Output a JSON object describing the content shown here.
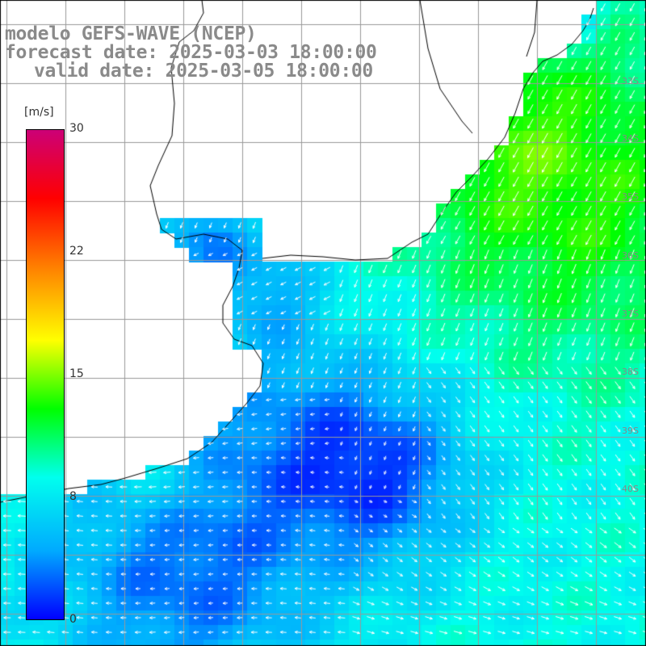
{
  "header": {
    "model": "modelo GEFS-WAVE (NCEP)",
    "forecast": "forecast date: 2025-03-03 18:00:00",
    "valid": "valid date: 2025-03-05 18:00:00"
  },
  "colorbar": {
    "unit": "[m/s]",
    "ticks": [
      "30",
      "22",
      "15",
      "8",
      "0"
    ],
    "range": [
      0,
      30
    ],
    "colors": [
      "#0000ff",
      "#00aaff",
      "#00ffee",
      "#00ff00",
      "#ffff00",
      "#ff8800",
      "#ff0000",
      "#cc0077"
    ]
  },
  "map": {
    "land_color": "#ffffff",
    "grid_color": "#999999",
    "coast_color": "#000000",
    "vector_color": "#ffffff",
    "lat_labels": [
      "33S",
      "34S",
      "35S",
      "36S",
      "37S",
      "38S",
      "39S",
      "40S"
    ]
  }
}
